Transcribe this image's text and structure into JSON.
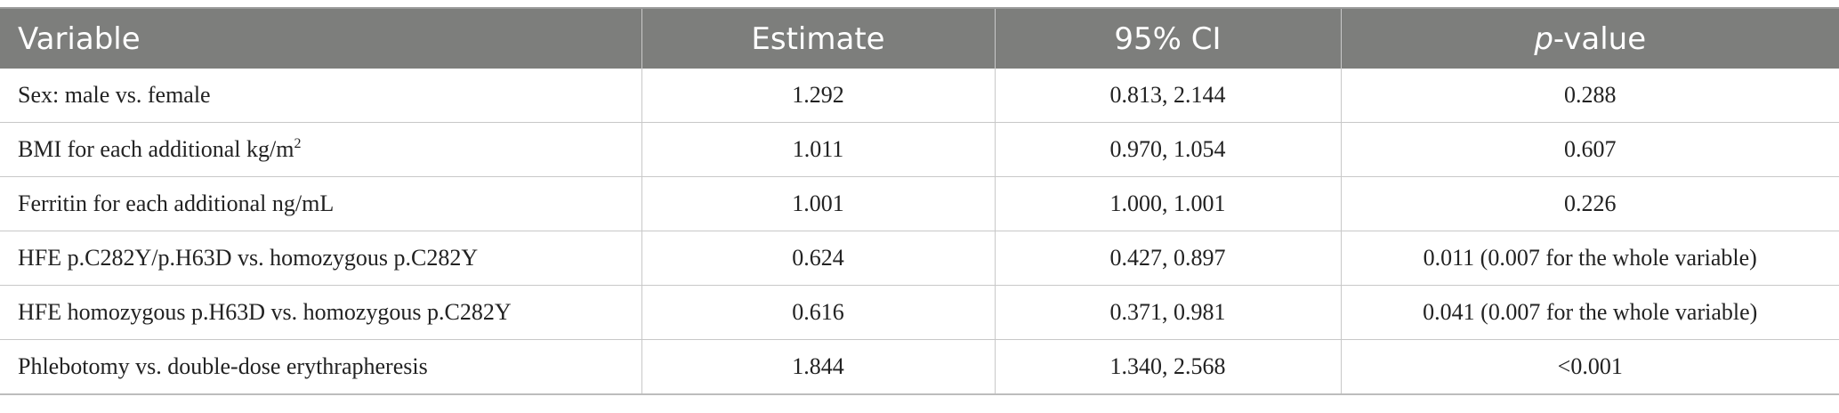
{
  "table": {
    "headers": {
      "variable": "Variable",
      "estimate": "Estimate",
      "ci": "95% CI",
      "p_italic": "p",
      "p_rest": "-value"
    },
    "rows": [
      {
        "variable": "Sex: male vs. female",
        "estimate": "1.292",
        "ci": "0.813, 2.144",
        "p": "0.288"
      },
      {
        "variable": "BMI for each additional kg/m",
        "variable_sup": "2",
        "estimate": "1.011",
        "ci": "0.970, 1.054",
        "p": "0.607"
      },
      {
        "variable": "Ferritin for each additional ng/mL",
        "estimate": "1.001",
        "ci": "1.000, 1.001",
        "p": "0.226"
      },
      {
        "variable": "HFE p.C282Y/p.H63D vs. homozygous p.C282Y",
        "estimate": "0.624",
        "ci": "0.427, 0.897",
        "p": "0.011 (0.007 for the whole variable)"
      },
      {
        "variable": "HFE homozygous p.H63D vs. homozygous p.C282Y",
        "estimate": "0.616",
        "ci": "0.371, 0.981",
        "p": "0.041 (0.007 for the whole variable)"
      },
      {
        "variable": "Phlebotomy vs. double-dose erythrapheresis",
        "estimate": "1.844",
        "ci": "1.340, 2.568",
        "p": "<0.001"
      }
    ]
  }
}
